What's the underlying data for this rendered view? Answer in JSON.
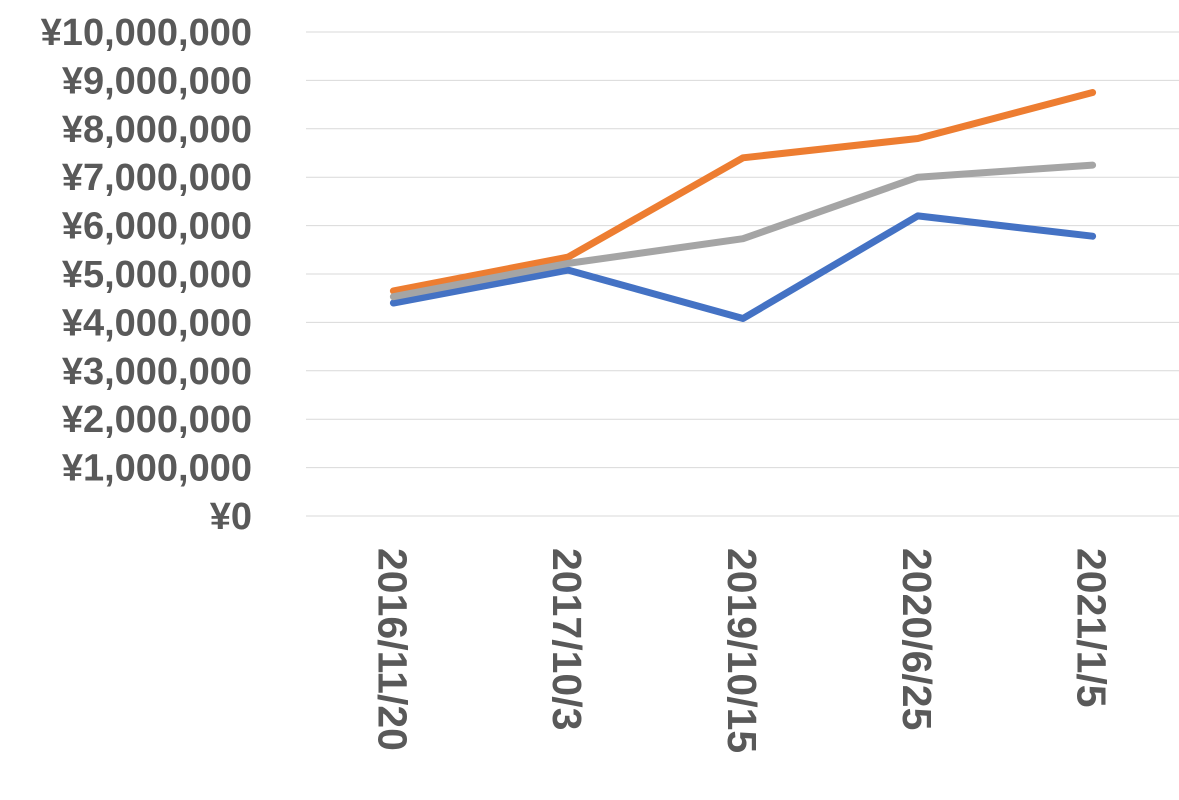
{
  "chart_data": {
    "type": "line",
    "categories": [
      "2016/11/20",
      "2017/10/3",
      "2019/10/15",
      "2020/6/25",
      "2021/1/5"
    ],
    "series": [
      {
        "color": "#4472C4",
        "values": [
          4400000,
          5080000,
          4080000,
          6200000,
          5780000
        ]
      },
      {
        "color": "#ED7D31",
        "values": [
          4650000,
          5350000,
          7400000,
          7800000,
          8750000
        ]
      },
      {
        "color": "#A5A5A5",
        "values": [
          4530000,
          5220000,
          5730000,
          7000000,
          7250000
        ]
      }
    ],
    "ylim": [
      0,
      10000000
    ],
    "y_ticks": [
      "¥0",
      "¥1,000,000",
      "¥2,000,000",
      "¥3,000,000",
      "¥4,000,000",
      "¥5,000,000",
      "¥6,000,000",
      "¥7,000,000",
      "¥8,000,000",
      "¥9,000,000",
      "¥10,000,000"
    ],
    "grid": true,
    "legend": "none",
    "title": "",
    "xlabel": "",
    "ylabel": ""
  }
}
